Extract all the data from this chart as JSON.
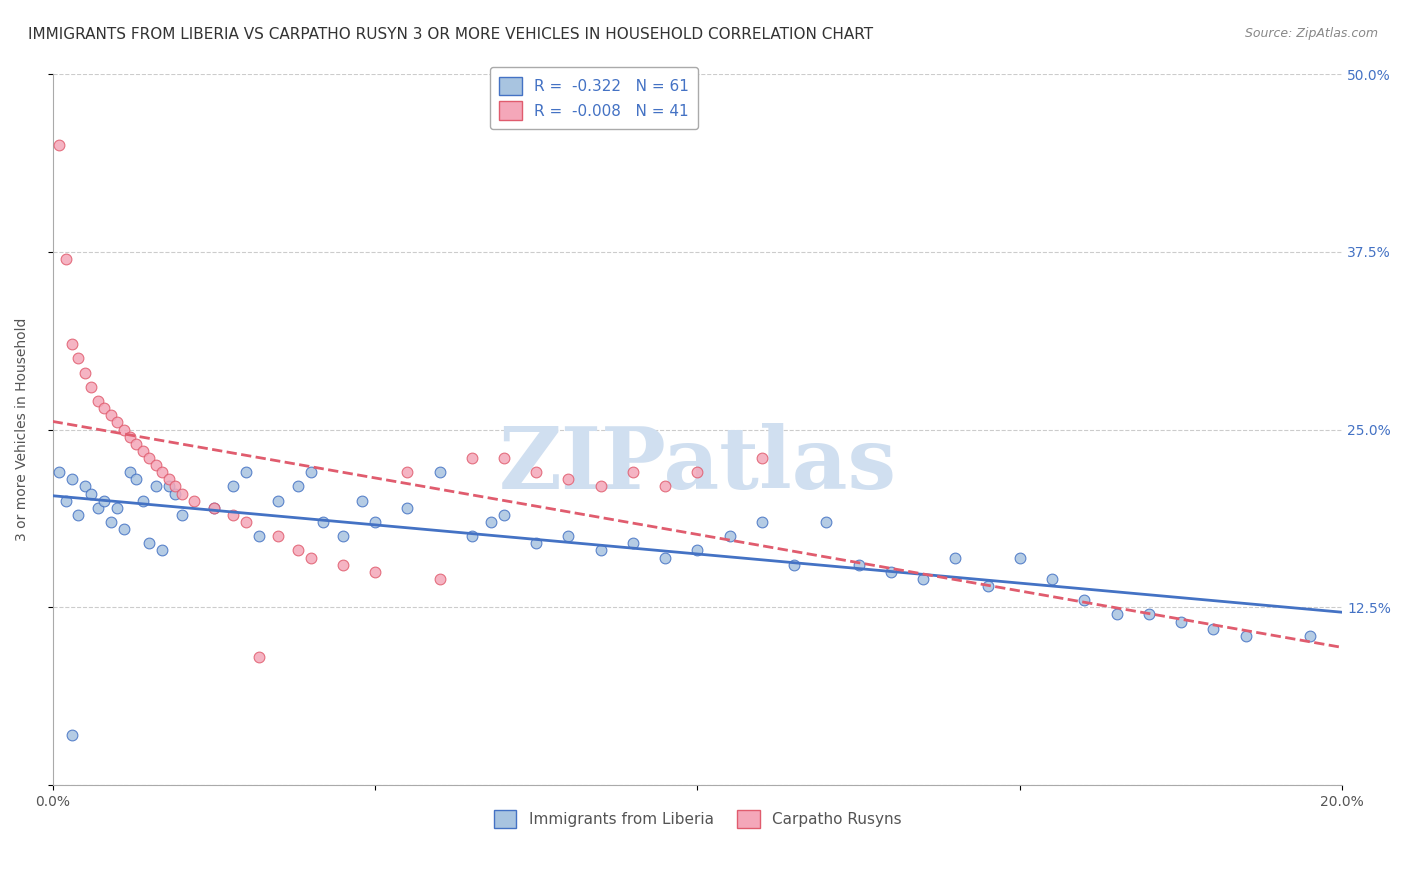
{
  "title": "IMMIGRANTS FROM LIBERIA VS CARPATHO RUSYN 3 OR MORE VEHICLES IN HOUSEHOLD CORRELATION CHART",
  "source": "Source: ZipAtlas.com",
  "xlabel": "",
  "ylabel": "3 or more Vehicles in Household",
  "xlim": [
    0.0,
    0.2
  ],
  "ylim": [
    0.0,
    0.5
  ],
  "xticks": [
    0.0,
    0.05,
    0.1,
    0.15,
    0.2
  ],
  "xtick_labels": [
    "0.0%",
    "",
    "",
    "",
    "20.0%"
  ],
  "yticks": [
    0.0,
    0.125,
    0.25,
    0.375,
    0.5
  ],
  "ytick_labels": [
    "",
    "12.5%",
    "25.0%",
    "37.5%",
    "50.0%"
  ],
  "legend_r1": "R =  -0.322",
  "legend_n1": "N = 61",
  "legend_r2": "R =  -0.008",
  "legend_n2": "N = 41",
  "color_blue": "#a8c4e0",
  "color_pink": "#f4a7b9",
  "line_color_blue": "#4472c4",
  "line_color_pink": "#e05c6e",
  "watermark": "ZIPatlas",
  "watermark_color": "#d0dff0",
  "background_color": "#ffffff",
  "title_fontsize": 11,
  "axis_label_fontsize": 10,
  "tick_fontsize": 10,
  "legend_fontsize": 11,
  "blue_dots": [
    [
      0.001,
      0.22
    ],
    [
      0.002,
      0.2
    ],
    [
      0.003,
      0.215
    ],
    [
      0.004,
      0.19
    ],
    [
      0.005,
      0.21
    ],
    [
      0.006,
      0.205
    ],
    [
      0.007,
      0.195
    ],
    [
      0.008,
      0.2
    ],
    [
      0.009,
      0.185
    ],
    [
      0.01,
      0.195
    ],
    [
      0.011,
      0.18
    ],
    [
      0.012,
      0.22
    ],
    [
      0.013,
      0.215
    ],
    [
      0.014,
      0.2
    ],
    [
      0.015,
      0.17
    ],
    [
      0.016,
      0.21
    ],
    [
      0.017,
      0.165
    ],
    [
      0.018,
      0.21
    ],
    [
      0.019,
      0.205
    ],
    [
      0.02,
      0.19
    ],
    [
      0.025,
      0.195
    ],
    [
      0.028,
      0.21
    ],
    [
      0.03,
      0.22
    ],
    [
      0.032,
      0.175
    ],
    [
      0.035,
      0.2
    ],
    [
      0.038,
      0.21
    ],
    [
      0.04,
      0.22
    ],
    [
      0.042,
      0.185
    ],
    [
      0.045,
      0.175
    ],
    [
      0.048,
      0.2
    ],
    [
      0.05,
      0.185
    ],
    [
      0.055,
      0.195
    ],
    [
      0.06,
      0.22
    ],
    [
      0.065,
      0.175
    ],
    [
      0.068,
      0.185
    ],
    [
      0.07,
      0.19
    ],
    [
      0.075,
      0.17
    ],
    [
      0.08,
      0.175
    ],
    [
      0.085,
      0.165
    ],
    [
      0.09,
      0.17
    ],
    [
      0.095,
      0.16
    ],
    [
      0.1,
      0.165
    ],
    [
      0.105,
      0.175
    ],
    [
      0.11,
      0.185
    ],
    [
      0.115,
      0.155
    ],
    [
      0.12,
      0.185
    ],
    [
      0.125,
      0.155
    ],
    [
      0.13,
      0.15
    ],
    [
      0.135,
      0.145
    ],
    [
      0.14,
      0.16
    ],
    [
      0.145,
      0.14
    ],
    [
      0.15,
      0.16
    ],
    [
      0.155,
      0.145
    ],
    [
      0.16,
      0.13
    ],
    [
      0.165,
      0.12
    ],
    [
      0.17,
      0.12
    ],
    [
      0.175,
      0.115
    ],
    [
      0.18,
      0.11
    ],
    [
      0.185,
      0.105
    ],
    [
      0.195,
      0.105
    ],
    [
      0.003,
      0.035
    ]
  ],
  "pink_dots": [
    [
      0.001,
      0.45
    ],
    [
      0.002,
      0.37
    ],
    [
      0.003,
      0.31
    ],
    [
      0.004,
      0.3
    ],
    [
      0.005,
      0.29
    ],
    [
      0.006,
      0.28
    ],
    [
      0.007,
      0.27
    ],
    [
      0.008,
      0.265
    ],
    [
      0.009,
      0.26
    ],
    [
      0.01,
      0.255
    ],
    [
      0.011,
      0.25
    ],
    [
      0.012,
      0.245
    ],
    [
      0.013,
      0.24
    ],
    [
      0.014,
      0.235
    ],
    [
      0.015,
      0.23
    ],
    [
      0.016,
      0.225
    ],
    [
      0.017,
      0.22
    ],
    [
      0.018,
      0.215
    ],
    [
      0.019,
      0.21
    ],
    [
      0.02,
      0.205
    ],
    [
      0.022,
      0.2
    ],
    [
      0.025,
      0.195
    ],
    [
      0.028,
      0.19
    ],
    [
      0.03,
      0.185
    ],
    [
      0.032,
      0.09
    ],
    [
      0.035,
      0.175
    ],
    [
      0.038,
      0.165
    ],
    [
      0.04,
      0.16
    ],
    [
      0.045,
      0.155
    ],
    [
      0.05,
      0.15
    ],
    [
      0.055,
      0.22
    ],
    [
      0.06,
      0.145
    ],
    [
      0.065,
      0.23
    ],
    [
      0.07,
      0.23
    ],
    [
      0.075,
      0.22
    ],
    [
      0.08,
      0.215
    ],
    [
      0.085,
      0.21
    ],
    [
      0.09,
      0.22
    ],
    [
      0.095,
      0.21
    ],
    [
      0.1,
      0.22
    ],
    [
      0.11,
      0.23
    ]
  ],
  "blue_dot_size_base": 60,
  "pink_dot_size_base": 60
}
